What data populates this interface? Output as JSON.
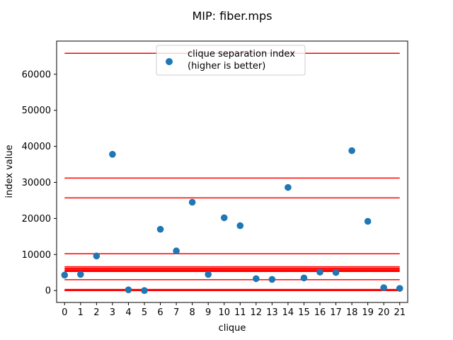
{
  "chart_data": {
    "type": "scatter",
    "title": "MIP: fiber.mps",
    "xlabel": "clique",
    "ylabel": "index value",
    "xlim": [
      -0.5,
      21.5
    ],
    "ylim": [
      -3300,
      69200
    ],
    "x_ticks": [
      0,
      1,
      2,
      3,
      4,
      5,
      6,
      7,
      8,
      9,
      10,
      11,
      12,
      13,
      14,
      15,
      16,
      17,
      18,
      19,
      20,
      21
    ],
    "y_ticks": [
      0,
      10000,
      20000,
      30000,
      40000,
      50000,
      60000
    ],
    "y_tick_labels": [
      "0",
      "10000",
      "20000",
      "30000",
      "40000",
      "50000",
      "60000"
    ],
    "grid": false,
    "legend": {
      "position": "top-center",
      "label_line1": "clique separation index",
      "label_line2": "(higher is better)"
    },
    "series": [
      {
        "name": "clique separation index\n(higher is better)",
        "color": "#1f77b4",
        "x": [
          0,
          1,
          2,
          3,
          4,
          5,
          6,
          7,
          8,
          9,
          10,
          11,
          12,
          13,
          14,
          15,
          16,
          17,
          18,
          19,
          20,
          21
        ],
        "values": [
          4300,
          4500,
          9600,
          37800,
          200,
          0,
          17000,
          11000,
          24500,
          4500,
          20200,
          18000,
          3300,
          3100,
          28600,
          3500,
          5100,
          5000,
          38800,
          19200,
          800,
          600
        ]
      }
    ],
    "hlines": {
      "color": "#ff0000",
      "xmin": 0,
      "xmax": 21,
      "values": [
        65800,
        31200,
        25700,
        10200,
        6600,
        6200,
        5900,
        5600,
        5300,
        3000,
        300,
        100,
        0
      ]
    }
  }
}
